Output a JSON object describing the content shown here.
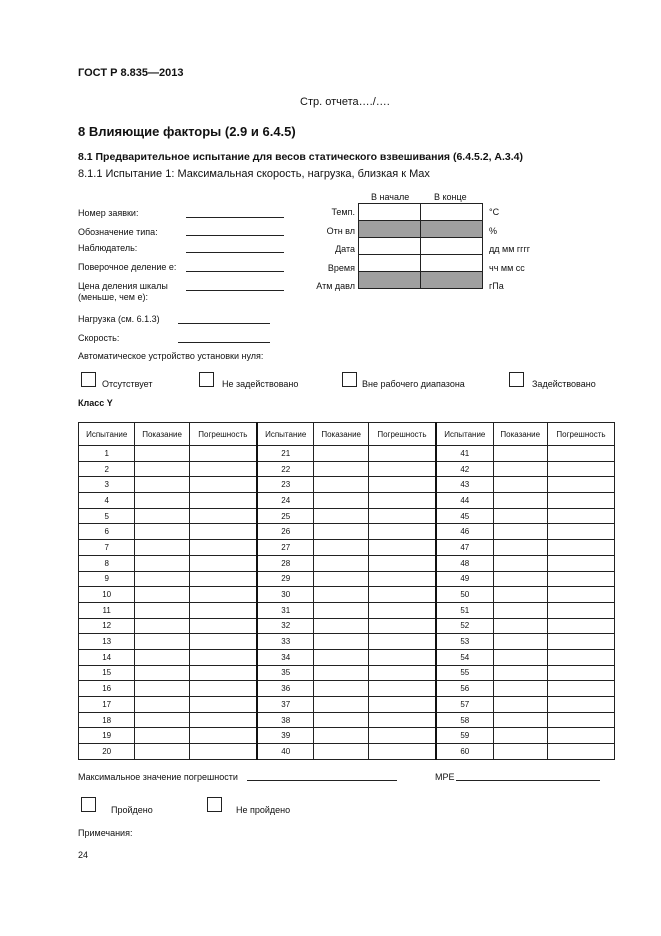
{
  "header": {
    "standard": "ГОСТ Р 8.835—2013",
    "report_page": "Стр. отчета…./…."
  },
  "section": {
    "title": "8  Влияющие факторы (2.9 и 6.4.5)",
    "subtitle": "8.1  Предварительное испытание для весов статического взвешивания (6.4.5.2, А.3.4)",
    "test": "8.1.1  Испытание 1:  Максимальная скорость, нагрузка, близкая к Max"
  },
  "form_fields": [
    {
      "label": "Номер заявки:"
    },
    {
      "label": "Обозначение типа:"
    },
    {
      "label": "Наблюдатель:"
    },
    {
      "label": "Поверочное деление e:"
    },
    {
      "label": "Цена деления шкалы",
      "label2": "(меньше, чем e):"
    }
  ],
  "load": {
    "label": "Нагрузка (см. 6.1.3)"
  },
  "speed": {
    "label": "Скорость:"
  },
  "conditions": {
    "col_start": "В начале",
    "col_end": "В конце",
    "rows": [
      {
        "label": "Темп.",
        "unit": "°C",
        "shaded": false
      },
      {
        "label": "Отн вл",
        "unit": "%",
        "shaded": true
      },
      {
        "label": "Дата",
        "unit": "дд мм гггг",
        "shaded": false
      },
      {
        "label": "Время",
        "unit": "чч мм сс",
        "shaded": false
      },
      {
        "label": "Атм давл",
        "unit": "гПа",
        "shaded": true
      }
    ]
  },
  "zero_device": {
    "label": "Автоматическое устройство установки нуля:",
    "options": [
      "Отсутствует",
      "Не задействовано",
      "Вне рабочего диапазона",
      "Задействовано"
    ]
  },
  "class_label": "Класс Y",
  "results": {
    "headers": [
      "Испытание",
      "Показание",
      "Погрешность"
    ],
    "groups": [
      [
        1,
        20
      ],
      [
        21,
        40
      ],
      [
        41,
        60
      ]
    ]
  },
  "max_error": {
    "label": "Максимальное значение погрешности",
    "mpe": "MPE"
  },
  "verdict": [
    "Пройдено",
    "Не пройдено"
  ],
  "notes": "Примечания:",
  "page_number": "24"
}
